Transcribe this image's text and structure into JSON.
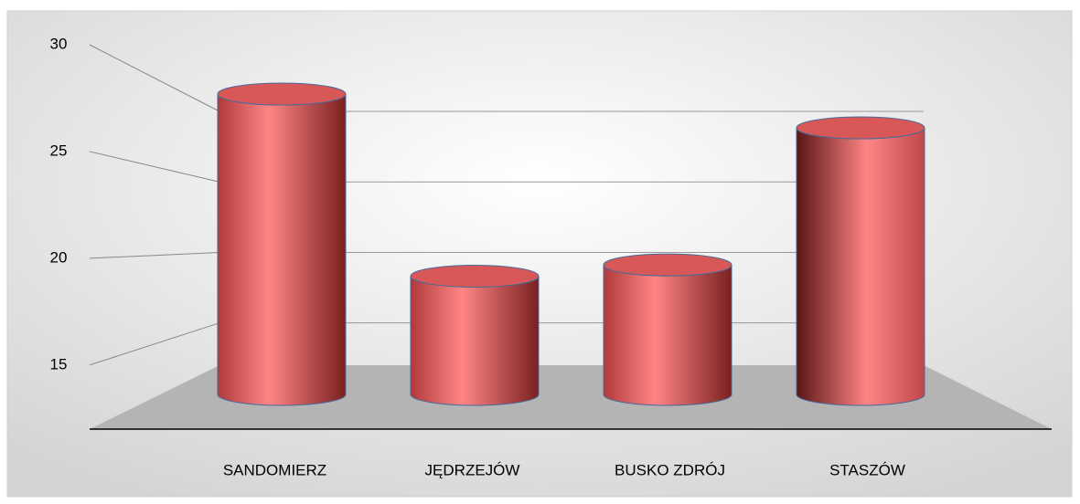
{
  "chart_data": {
    "type": "bar3d",
    "categories": [
      "SANDOMIERZ",
      "JĘDRZEJÓW",
      "BUSKO ZDRÓJ",
      "STASZÓW"
    ],
    "values": [
      28,
      18.3,
      18.9,
      26.2
    ],
    "color": "#d9534f",
    "ylim": [
      12,
      30
    ],
    "yticks": [
      15,
      20,
      25,
      30
    ],
    "grid": true
  }
}
